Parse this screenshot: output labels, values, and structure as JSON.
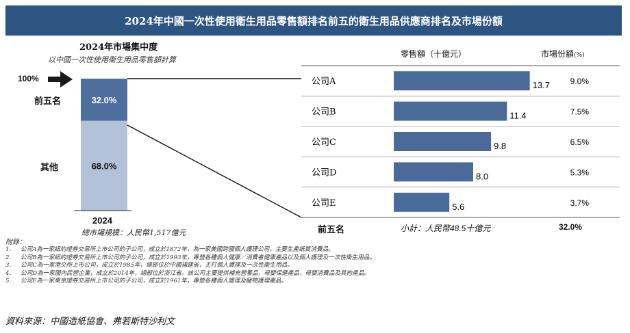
{
  "title": "2024年中國一次性使用衛生用品零售額排名前五的衛生用品供應商排名及市場份額",
  "left_panel": {
    "title": "2024年市場集中度",
    "subtitle": "以中國一次性使用衛生用品零售額計算",
    "pointer_label": "100%",
    "top5_label": "前五名",
    "others_label": "其他",
    "top5_share": "32.0%",
    "others_share": "68.0%",
    "year": "2024",
    "market_size": "總市場規模：人民幣1,517億元"
  },
  "right_panel": {
    "header_sales": "零售額（十億元）",
    "header_share": "市場份額",
    "header_share_unit": "(%)",
    "footer_label": "前五名",
    "footer_subtotal": "小計：人民幣48.5十億元",
    "footer_share": "32.0%"
  },
  "notes": {
    "heading": "附錄：",
    "items": [
      {
        "num": "1.",
        "text": "公司A為一家紐約證券交易所上市公司的子公司，成立於1872年，為一家美國跨國個人護理公司，主要生產紙質消費品。"
      },
      {
        "num": "2.",
        "text": "公司B為一家紐約證券交易所上市公司的子公司，成立於1993年，專營各種個人健康／消費者健康產品以及個人護理及一次性衛生用品。"
      },
      {
        "num": "3.",
        "text": "公司C為一家港交所上市公司，成立於1985年，總部位於中國福建省，主打個人護理及一次性衛生用品。"
      },
      {
        "num": "4.",
        "text": "公司D為一家國內民營企業，成立於2014年，總部位於浙江省。該公司主要提供補充營養品，母嬰保健產品，母嬰消費品及其他產品。"
      },
      {
        "num": "5.",
        "text": "公司E為一家東京證券交易所上市公司的子公司，成立於1961年，專營各種個人護理及寵物護理產品。"
      }
    ]
  },
  "source": "資料來源：中國造紙協會、弗若斯特沙利文",
  "colors": {
    "banner": "#2e5581",
    "bar": "#4a6a9a",
    "top5_segment": "#4e6f9d",
    "others_segment": "#b3c2d8"
  },
  "chart_data": [
    {
      "type": "bar",
      "orientation": "stacked-vertical",
      "title": "2024年市場集中度",
      "categories": [
        "2024"
      ],
      "series": [
        {
          "name": "前五名",
          "values": [
            32.0
          ]
        },
        {
          "name": "其他",
          "values": [
            68.0
          ]
        }
      ],
      "ylim": [
        0,
        100
      ]
    },
    {
      "type": "bar",
      "orientation": "horizontal",
      "categories": [
        "公司A",
        "公司B",
        "公司C",
        "公司D",
        "公司E"
      ],
      "values": [
        13.7,
        11.4,
        9.8,
        8.0,
        5.6
      ],
      "value_labels": [
        "13.7",
        "11.4",
        "9.8",
        "8.0",
        "5.6"
      ],
      "shares": [
        "9.0%",
        "7.5%",
        "6.5%",
        "5.3%",
        "3.7%"
      ],
      "xlim": [
        0,
        20
      ]
    }
  ]
}
